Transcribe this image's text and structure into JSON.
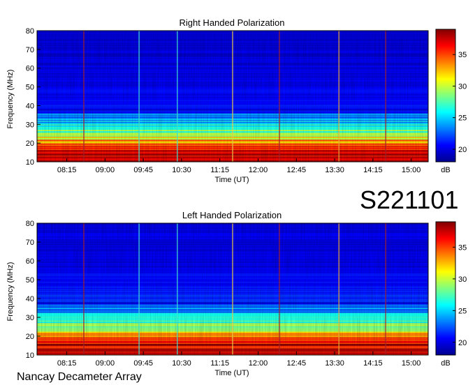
{
  "chart_data": [
    {
      "type": "heatmap",
      "title": "Right Handed Polarization",
      "xlabel": "Time (UT)",
      "ylabel": "Frequency (MHz)",
      "x_ticks": [
        "08:15",
        "09:00",
        "09:45",
        "10:30",
        "11:15",
        "12:00",
        "12:45",
        "13:30",
        "14:15",
        "15:00"
      ],
      "y_ticks": [
        10,
        20,
        30,
        40,
        50,
        60,
        70,
        80
      ],
      "ylim": [
        10,
        80
      ],
      "colorbar": {
        "label": "dB",
        "ticks": [
          20,
          25,
          30,
          35
        ],
        "range": [
          18,
          39
        ]
      },
      "intensity_profile": [
        {
          "freq": 10,
          "db": 38
        },
        {
          "freq": 12,
          "db": 38
        },
        {
          "freq": 15,
          "db": 37
        },
        {
          "freq": 18,
          "db": 36
        },
        {
          "freq": 20,
          "db": 34
        },
        {
          "freq": 22,
          "db": 31
        },
        {
          "freq": 24,
          "db": 30
        },
        {
          "freq": 26,
          "db": 28
        },
        {
          "freq": 28,
          "db": 27
        },
        {
          "freq": 30,
          "db": 26
        },
        {
          "freq": 32,
          "db": 24
        },
        {
          "freq": 35,
          "db": 23
        },
        {
          "freq": 38,
          "db": 21
        },
        {
          "freq": 45,
          "db": 20.5
        },
        {
          "freq": 60,
          "db": 20
        },
        {
          "freq": 80,
          "db": 20
        }
      ],
      "marker_lines": [
        {
          "time": "08:35",
          "color": "#a0202a"
        },
        {
          "time": "09:40",
          "color": "#40e0d0"
        },
        {
          "time": "10:25",
          "color": "#40e0d0"
        },
        {
          "time": "11:30",
          "color": "#e8c84a"
        },
        {
          "time": "12:25",
          "color": "#a0202a"
        },
        {
          "time": "13:35",
          "color": "#e8a83a"
        },
        {
          "time": "14:30",
          "color": "#a0202a"
        }
      ]
    },
    {
      "type": "heatmap",
      "title": "Left Handed Polarization",
      "xlabel": "Time (UT)",
      "ylabel": "Frequency (MHz)",
      "x_ticks": [
        "08:15",
        "09:00",
        "09:45",
        "10:30",
        "11:15",
        "12:00",
        "12:45",
        "13:30",
        "14:15",
        "15:00"
      ],
      "y_ticks": [
        10,
        20,
        30,
        40,
        50,
        60,
        70,
        80
      ],
      "ylim": [
        10,
        80
      ],
      "colorbar": {
        "label": "dB",
        "ticks": [
          20,
          25,
          30,
          35
        ],
        "range": [
          18,
          39
        ]
      },
      "intensity_profile": [
        {
          "freq": 10,
          "db": 38
        },
        {
          "freq": 12,
          "db": 38
        },
        {
          "freq": 15,
          "db": 37
        },
        {
          "freq": 18,
          "db": 36
        },
        {
          "freq": 20,
          "db": 34
        },
        {
          "freq": 22,
          "db": 32
        },
        {
          "freq": 24,
          "db": 30
        },
        {
          "freq": 26,
          "db": 28.5
        },
        {
          "freq": 28,
          "db": 27
        },
        {
          "freq": 30,
          "db": 25.5
        },
        {
          "freq": 32,
          "db": 24
        },
        {
          "freq": 35,
          "db": 23
        },
        {
          "freq": 38,
          "db": 21.5
        },
        {
          "freq": 45,
          "db": 21
        },
        {
          "freq": 60,
          "db": 20
        },
        {
          "freq": 80,
          "db": 20
        }
      ],
      "marker_lines": [
        {
          "time": "08:35",
          "color": "#a0202a"
        },
        {
          "time": "09:40",
          "color": "#40e0d0"
        },
        {
          "time": "10:25",
          "color": "#40e0d0"
        },
        {
          "time": "11:30",
          "color": "#e8c84a"
        },
        {
          "time": "12:25",
          "color": "#a0202a"
        },
        {
          "time": "13:35",
          "color": "#e8a83a"
        },
        {
          "time": "14:30",
          "color": "#a0202a"
        }
      ]
    }
  ],
  "label_id": "S221101",
  "label_instrument": "Nancay Decameter Array"
}
